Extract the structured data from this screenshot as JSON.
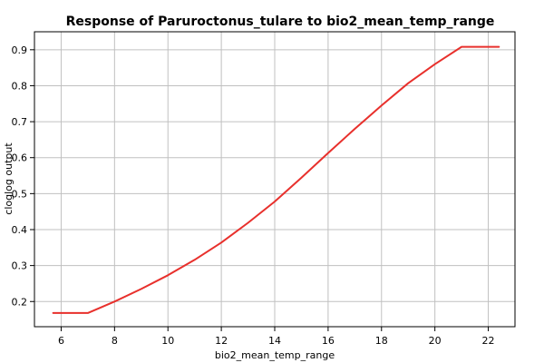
{
  "chart_data": {
    "type": "line",
    "title": "Response of Paruroctonus_tulare to bio2_mean_temp_range",
    "xlabel": "bio2_mean_temp_range",
    "ylabel": "cloglog output",
    "xlim": [
      5.0,
      23.0
    ],
    "ylim": [
      0.13,
      0.95
    ],
    "xticks": [
      6,
      8,
      10,
      12,
      14,
      16,
      18,
      20,
      22
    ],
    "yticks": [
      0.2,
      0.3,
      0.4,
      0.5,
      0.6,
      0.7,
      0.8,
      0.9
    ],
    "ytick_labels": [
      "0.2",
      "0.3",
      "0.4",
      "0.5",
      "0.6",
      "0.7",
      "0.8",
      "0.9"
    ],
    "grid": true,
    "series": [
      {
        "color": "#e8302c",
        "x": [
          5.7,
          7.0,
          8.0,
          9.0,
          10.0,
          11.0,
          12.0,
          13.0,
          14.0,
          15.0,
          16.0,
          17.0,
          18.0,
          19.0,
          20.0,
          21.0,
          22.4
        ],
        "y": [
          0.168,
          0.168,
          0.2,
          0.235,
          0.273,
          0.316,
          0.364,
          0.419,
          0.478,
          0.544,
          0.613,
          0.68,
          0.745,
          0.807,
          0.86,
          0.908,
          0.908
        ]
      }
    ]
  }
}
